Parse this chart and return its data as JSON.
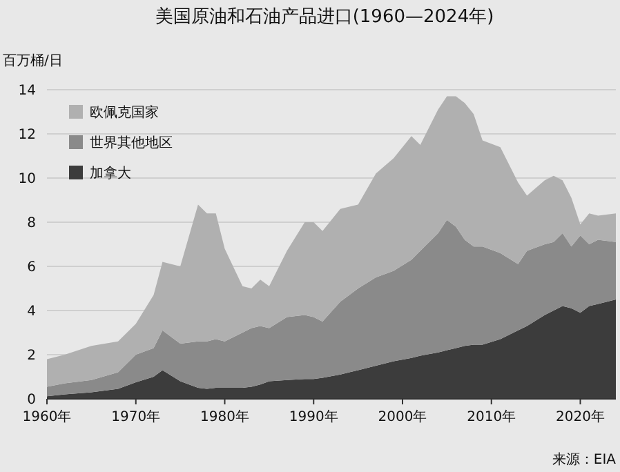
{
  "chart_data": {
    "type": "area",
    "stacked": true,
    "title": "美国原油和石油产品进口(1960—2024年)",
    "ylabel": "百万桶/日",
    "x": [
      1960,
      1962,
      1965,
      1968,
      1970,
      1972,
      1973,
      1975,
      1977,
      1978,
      1979,
      1980,
      1982,
      1983,
      1984,
      1985,
      1987,
      1989,
      1990,
      1991,
      1993,
      1995,
      1997,
      1999,
      2001,
      2002,
      2004,
      2005,
      2006,
      2007,
      2008,
      2009,
      2011,
      2013,
      2014,
      2016,
      2017,
      2018,
      2019,
      2020,
      2021,
      2022,
      2024
    ],
    "series": [
      {
        "name": "加拿大",
        "color": "#3c3c3c",
        "values": [
          0.12,
          0.2,
          0.3,
          0.45,
          0.75,
          1.0,
          1.3,
          0.8,
          0.5,
          0.45,
          0.5,
          0.5,
          0.5,
          0.55,
          0.65,
          0.8,
          0.85,
          0.9,
          0.9,
          0.95,
          1.1,
          1.3,
          1.5,
          1.7,
          1.85,
          1.95,
          2.1,
          2.2,
          2.3,
          2.4,
          2.45,
          2.45,
          2.7,
          3.1,
          3.3,
          3.8,
          4.0,
          4.2,
          4.1,
          3.9,
          4.2,
          4.3,
          4.5
        ]
      },
      {
        "name": "世界其他地区",
        "color": "#8a8a8a",
        "values": [
          0.43,
          0.5,
          0.55,
          0.75,
          1.25,
          1.3,
          1.8,
          1.7,
          2.1,
          2.15,
          2.2,
          2.1,
          2.5,
          2.65,
          2.65,
          2.4,
          2.85,
          2.9,
          2.8,
          2.55,
          3.3,
          3.7,
          4.0,
          4.1,
          4.45,
          4.75,
          5.4,
          5.9,
          5.5,
          4.8,
          4.45,
          4.45,
          3.9,
          3.0,
          3.4,
          3.2,
          3.1,
          3.3,
          2.8,
          3.5,
          2.8,
          2.9,
          2.6
        ]
      },
      {
        "name": "欧佩克国家",
        "color": "#b0b0b0",
        "values": [
          1.25,
          1.3,
          1.55,
          1.4,
          1.4,
          2.4,
          3.1,
          3.5,
          6.2,
          5.8,
          5.7,
          4.2,
          2.1,
          1.8,
          2.1,
          1.9,
          3.0,
          4.2,
          4.3,
          4.1,
          4.2,
          3.8,
          4.7,
          5.1,
          5.6,
          4.8,
          5.6,
          5.6,
          5.9,
          6.2,
          6.0,
          4.8,
          4.8,
          3.7,
          2.5,
          2.9,
          3.0,
          2.4,
          2.2,
          0.5,
          1.4,
          1.1,
          1.3
        ]
      }
    ],
    "xlim": [
      1960,
      2024
    ],
    "xticks": [
      {
        "value": 1960,
        "label": "1960年"
      },
      {
        "value": 1970,
        "label": "1970年"
      },
      {
        "value": 1980,
        "label": "1980年"
      },
      {
        "value": 1990,
        "label": "1990年"
      },
      {
        "value": 2000,
        "label": "2000年"
      },
      {
        "value": 2010,
        "label": "2010年"
      },
      {
        "value": 2020,
        "label": "2020年"
      }
    ],
    "ylim": [
      0,
      14
    ],
    "yticks": [
      0,
      2,
      4,
      6,
      8,
      10,
      12,
      14
    ],
    "grid": "y",
    "legend": "top left",
    "annotations": [
      "来源：EIA"
    ]
  }
}
